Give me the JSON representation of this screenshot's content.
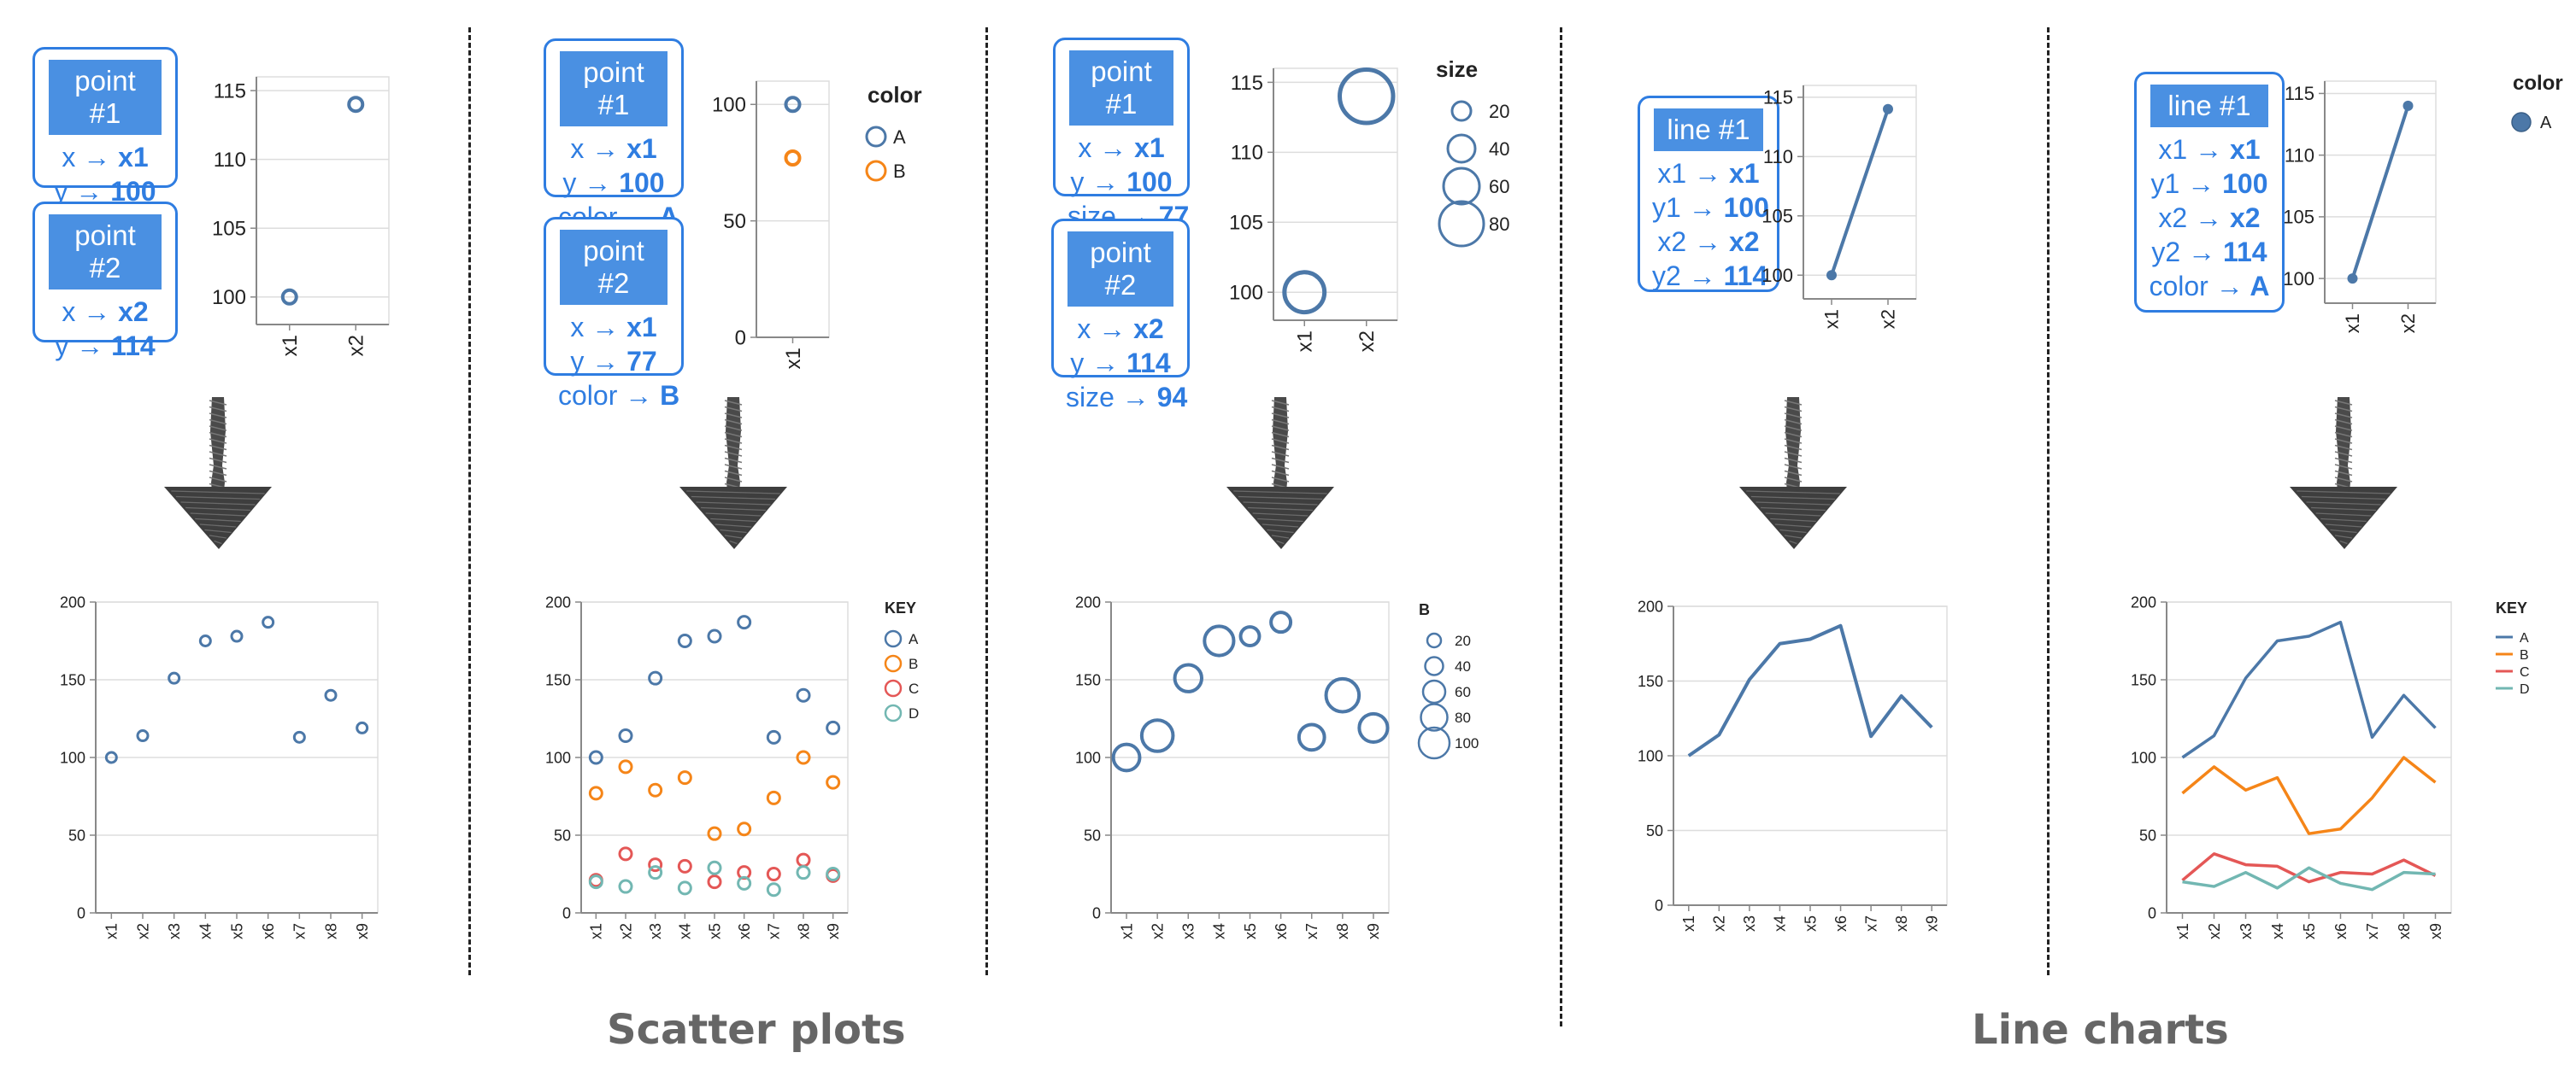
{
  "panels": [
    {
      "id": "scatter-basic",
      "cards": [
        {
          "title": "point #1",
          "lines": [
            {
              "k": "x",
              "v": "x1"
            },
            {
              "k": "y",
              "v": "100"
            }
          ]
        },
        {
          "title": "point #2",
          "lines": [
            {
              "k": "x",
              "v": "x2"
            },
            {
              "k": "y",
              "v": "114"
            }
          ]
        }
      ]
    },
    {
      "id": "scatter-color",
      "cards": [
        {
          "title": "point #1",
          "lines": [
            {
              "k": "x",
              "v": "x1"
            },
            {
              "k": "y",
              "v": "100"
            },
            {
              "k": "color",
              "v": "A"
            }
          ]
        },
        {
          "title": "point #2",
          "lines": [
            {
              "k": "x",
              "v": "x1"
            },
            {
              "k": "y",
              "v": "77"
            },
            {
              "k": "color",
              "v": "B"
            }
          ]
        }
      ]
    },
    {
      "id": "scatter-size",
      "cards": [
        {
          "title": "point #1",
          "lines": [
            {
              "k": "x",
              "v": "x1"
            },
            {
              "k": "y",
              "v": "100"
            },
            {
              "k": "size",
              "v": "77"
            }
          ]
        },
        {
          "title": "point #2",
          "lines": [
            {
              "k": "x",
              "v": "x2"
            },
            {
              "k": "y",
              "v": "114"
            },
            {
              "k": "size",
              "v": "94"
            }
          ]
        }
      ]
    },
    {
      "id": "line-basic",
      "cards": [
        {
          "title": "line #1",
          "lines": [
            {
              "k": "x1",
              "v": "x1"
            },
            {
              "k": "y1",
              "v": "100"
            },
            {
              "k": "x2",
              "v": "x2"
            },
            {
              "k": "y2",
              "v": "114"
            }
          ]
        }
      ]
    },
    {
      "id": "line-color",
      "cards": [
        {
          "title": "line #1",
          "lines": [
            {
              "k": "x1",
              "v": "x1"
            },
            {
              "k": "y1",
              "v": "100"
            },
            {
              "k": "x2",
              "v": "x2"
            },
            {
              "k": "y2",
              "v": "114"
            },
            {
              "k": "color",
              "v": "A"
            }
          ]
        }
      ]
    }
  ],
  "arrow_symbol": "→",
  "section_labels": {
    "scatter": "Scatter plots",
    "line": "Line charts"
  },
  "colors": {
    "A": "#4c78a8",
    "B": "#f58518",
    "C": "#e45756",
    "D": "#72b7b2",
    "card": "#2f7de1",
    "card_title_bg": "#4a90e2"
  },
  "chart_data": [
    {
      "id": "mini-scatter-basic",
      "type": "scatter",
      "categories": [
        "x1",
        "x2"
      ],
      "yticks": [
        100,
        105,
        110,
        115
      ],
      "ylim": [
        98,
        116
      ],
      "points": [
        {
          "x": "x1",
          "y": 100,
          "series": "A"
        },
        {
          "x": "x2",
          "y": 114,
          "series": "A"
        }
      ]
    },
    {
      "id": "mini-scatter-color",
      "type": "scatter",
      "categories": [
        "x1"
      ],
      "yticks": [
        0,
        50,
        100
      ],
      "ylim": [
        0,
        110
      ],
      "legend": {
        "title": "color",
        "entries": [
          "A",
          "B"
        ]
      },
      "points": [
        {
          "x": "x1",
          "y": 100,
          "series": "A"
        },
        {
          "x": "x1",
          "y": 77,
          "series": "B"
        }
      ]
    },
    {
      "id": "mini-scatter-size",
      "type": "scatter",
      "categories": [
        "x1",
        "x2"
      ],
      "yticks": [
        100,
        105,
        110,
        115
      ],
      "ylim": [
        98,
        116
      ],
      "legend": {
        "title": "size",
        "entries": [
          "20",
          "40",
          "60",
          "80"
        ]
      },
      "points": [
        {
          "x": "x1",
          "y": 100,
          "size": 77,
          "series": "A"
        },
        {
          "x": "x2",
          "y": 114,
          "size": 94,
          "series": "A"
        }
      ]
    },
    {
      "id": "mini-line-basic",
      "type": "line",
      "categories": [
        "x1",
        "x2"
      ],
      "yticks": [
        100,
        105,
        110,
        115
      ],
      "ylim": [
        98,
        116
      ],
      "series": [
        {
          "values": [
            100,
            114
          ]
        }
      ]
    },
    {
      "id": "mini-line-color",
      "type": "line",
      "categories": [
        "x1",
        "x2"
      ],
      "yticks": [
        100,
        105,
        110,
        115
      ],
      "ylim": [
        98,
        116
      ],
      "legend": {
        "title": "color",
        "entries": [
          "A"
        ]
      },
      "series": [
        {
          "name": "A",
          "values": [
            100,
            114
          ]
        }
      ]
    },
    {
      "id": "big-scatter-basic",
      "type": "scatter",
      "categories": [
        "x1",
        "x2",
        "x3",
        "x4",
        "x5",
        "x6",
        "x7",
        "x8",
        "x9"
      ],
      "yticks": [
        0,
        50,
        100,
        150,
        200
      ],
      "ylim": [
        0,
        200
      ],
      "series": [
        {
          "name": "A",
          "values": [
            100,
            114,
            151,
            175,
            178,
            187,
            113,
            140,
            119
          ]
        }
      ]
    },
    {
      "id": "big-scatter-color",
      "type": "scatter",
      "categories": [
        "x1",
        "x2",
        "x3",
        "x4",
        "x5",
        "x6",
        "x7",
        "x8",
        "x9"
      ],
      "yticks": [
        0,
        50,
        100,
        150,
        200
      ],
      "ylim": [
        0,
        200
      ],
      "legend": {
        "title": "KEY",
        "entries": [
          "A",
          "B",
          "C",
          "D"
        ]
      },
      "series": [
        {
          "name": "A",
          "values": [
            100,
            114,
            151,
            175,
            178,
            187,
            113,
            140,
            119
          ]
        },
        {
          "name": "B",
          "values": [
            77,
            94,
            79,
            87,
            51,
            54,
            74,
            100,
            84
          ]
        },
        {
          "name": "C",
          "values": [
            21,
            38,
            31,
            30,
            20,
            26,
            25,
            34,
            24
          ]
        },
        {
          "name": "D",
          "values": [
            20,
            17,
            26,
            16,
            29,
            19,
            15,
            26,
            25
          ]
        }
      ]
    },
    {
      "id": "big-scatter-size",
      "type": "scatter",
      "categories": [
        "x1",
        "x2",
        "x3",
        "x4",
        "x5",
        "x6",
        "x7",
        "x8",
        "x9"
      ],
      "yticks": [
        0,
        50,
        100,
        150,
        200
      ],
      "ylim": [
        0,
        200
      ],
      "legend": {
        "title": "B",
        "entries": [
          "20",
          "40",
          "60",
          "80",
          "100"
        ]
      },
      "series": [
        {
          "name": "A",
          "values": [
            100,
            114,
            151,
            175,
            178,
            187,
            113,
            140,
            119
          ],
          "sizes": [
            77,
            94,
            79,
            87,
            51,
            54,
            74,
            100,
            84
          ]
        }
      ]
    },
    {
      "id": "big-line-basic",
      "type": "line",
      "categories": [
        "x1",
        "x2",
        "x3",
        "x4",
        "x5",
        "x6",
        "x7",
        "x8",
        "x9"
      ],
      "yticks": [
        0,
        50,
        100,
        150,
        200
      ],
      "ylim": [
        0,
        200
      ],
      "series": [
        {
          "name": "A",
          "values": [
            100,
            114,
            151,
            175,
            178,
            187,
            113,
            140,
            119
          ]
        }
      ]
    },
    {
      "id": "big-line-color",
      "type": "line",
      "categories": [
        "x1",
        "x2",
        "x3",
        "x4",
        "x5",
        "x6",
        "x7",
        "x8",
        "x9"
      ],
      "yticks": [
        0,
        50,
        100,
        150,
        200
      ],
      "ylim": [
        0,
        200
      ],
      "legend": {
        "title": "KEY",
        "entries": [
          "A",
          "B",
          "C",
          "D"
        ]
      },
      "series": [
        {
          "name": "A",
          "values": [
            100,
            114,
            151,
            175,
            178,
            187,
            113,
            140,
            119
          ]
        },
        {
          "name": "B",
          "values": [
            77,
            94,
            79,
            87,
            51,
            54,
            74,
            100,
            84
          ]
        },
        {
          "name": "C",
          "values": [
            21,
            38,
            31,
            30,
            20,
            26,
            25,
            34,
            24
          ]
        },
        {
          "name": "D",
          "values": [
            20,
            17,
            26,
            16,
            29,
            19,
            15,
            26,
            25
          ]
        }
      ]
    }
  ]
}
